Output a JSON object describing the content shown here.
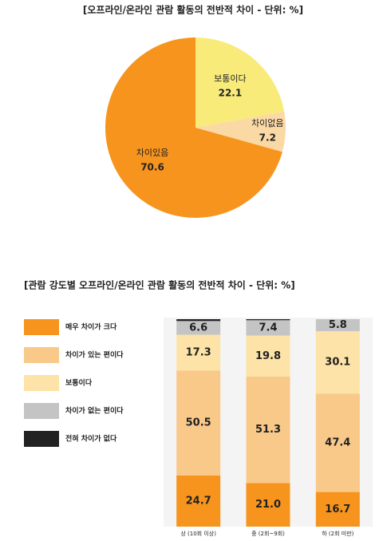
{
  "chart_data": [
    {
      "type": "pie",
      "title": "[오프라인/온라인 관람 활동의 전반적 차이 - 단위: %]",
      "categories": [
        "보통이다",
        "차이없음",
        "차이있음"
      ],
      "values": [
        22.1,
        7.2,
        70.6
      ],
      "colors": [
        "#f8eb7a",
        "#fbd9a5",
        "#f7941d"
      ]
    },
    {
      "type": "stacked_bar",
      "title": "[관람 강도별 오프라인/온라인 관람 활동의 전반적 차이 - 단위: %]",
      "categories": [
        "상 (10회 이상)",
        "중 (2회~9회)",
        "하 (2회 미만)"
      ],
      "ylim": [
        0,
        100
      ],
      "series": [
        {
          "name": "매우 차이가 크다",
          "color": "#f7941d",
          "values": [
            24.7,
            21.0,
            16.7
          ],
          "value_labels": [
            "24.7",
            "21.0",
            "16.7"
          ]
        },
        {
          "name": "차이가 있는 편이다",
          "color": "#f9c98a",
          "values": [
            50.5,
            51.3,
            47.4
          ]
        },
        {
          "name": "보통이다",
          "color": "#fde3a7",
          "values": [
            17.3,
            19.8,
            30.1
          ]
        },
        {
          "name": "차이가 없는 편이다",
          "color": "#c4c4c4",
          "values": [
            6.6,
            7.4,
            5.8
          ]
        },
        {
          "name": "전혀 차이가 없다",
          "color": "#222222",
          "values": [
            0.9,
            0.5,
            0.0
          ]
        }
      ]
    }
  ]
}
